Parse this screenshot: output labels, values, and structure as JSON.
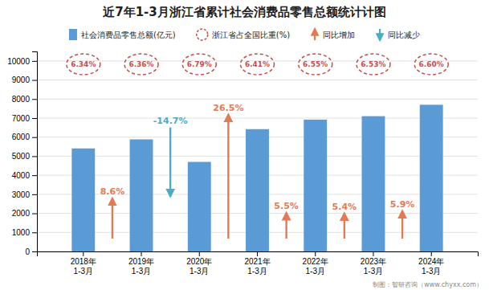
{
  "chart_data": {
    "type": "bar",
    "title": "近7年1-3月浙江省累计社会消费品零售总额统计计图",
    "categories": [
      "2018年\n1-3月",
      "2019年\n1-3月",
      "2020年\n1-3月",
      "2021年\n1-3月",
      "2022年\n1-3月",
      "2023年\n1-3月",
      "2024年\n1-3月"
    ],
    "series": [
      {
        "name": "社会消费品零售总额(亿元)",
        "color": "#5B9BD5",
        "values": [
          5408,
          5882,
          4700,
          6420,
          6920,
          7100,
          7700
        ]
      }
    ],
    "share": {
      "name": "浙江省占全国比重(%)",
      "color": "#C0504D",
      "values": [
        6.34,
        6.36,
        6.79,
        6.41,
        6.55,
        6.53,
        6.6
      ],
      "value_labels": [
        "6.34%",
        "6.36%",
        "6.79%",
        "6.41%",
        "6.55%",
        "6.53%",
        "6.60%"
      ]
    },
    "yoy": {
      "names": [
        "同比增加",
        "同比减少"
      ],
      "colors": [
        "#E07B54",
        "#4BACC6"
      ],
      "values": [
        8.6,
        -14.7,
        26.5,
        5.5,
        5.4,
        5.9
      ],
      "value_labels": [
        "8.6%",
        "-14.7%",
        "26.5%",
        "5.5%",
        "5.4%",
        "5.9%"
      ]
    },
    "ylim": [
      0,
      10500
    ],
    "yticks": [
      0,
      1000,
      2000,
      3000,
      4000,
      5000,
      6000,
      7000,
      8000,
      9000,
      10000
    ],
    "grid": true,
    "legend": "top",
    "footer": "制图：智研咨询（www.chyxx.com）"
  }
}
